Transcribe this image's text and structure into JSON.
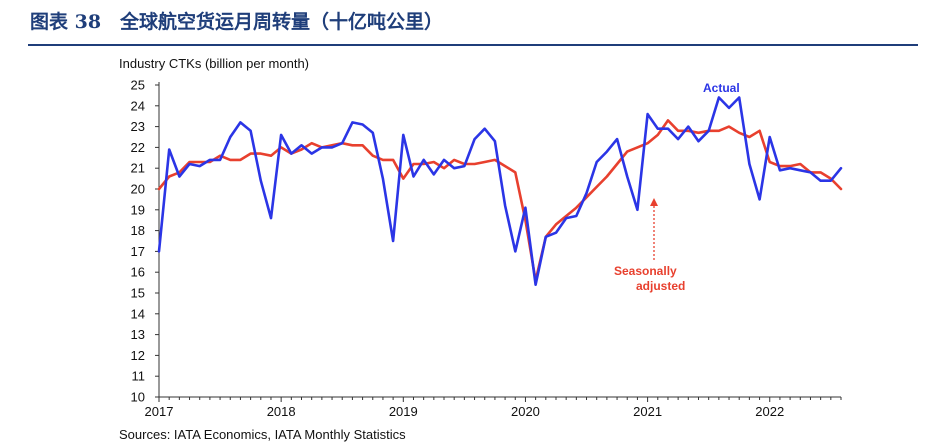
{
  "figure": {
    "title": "图表 38　全球航空货运月周转量（十亿吨公里）",
    "source": "Sources: IATA Economics, IATA Monthly Statistics"
  },
  "chart_data": {
    "type": "line",
    "ylabel": "Industry CTKs (billion per month)",
    "ylim": [
      10,
      25
    ],
    "yticks": [
      "10",
      "11",
      "12",
      "13",
      "14",
      "15",
      "16",
      "17",
      "18",
      "19",
      "20",
      "21",
      "22",
      "23",
      "24",
      "25"
    ],
    "xticks": [
      "2017",
      "2018",
      "2019",
      "2020",
      "2021",
      "2022"
    ],
    "xlim": [
      "2017-01",
      "2022-08"
    ],
    "grid": false,
    "x": [
      "2017-01",
      "2017-02",
      "2017-03",
      "2017-04",
      "2017-05",
      "2017-06",
      "2017-07",
      "2017-08",
      "2017-09",
      "2017-10",
      "2017-11",
      "2017-12",
      "2018-01",
      "2018-02",
      "2018-03",
      "2018-04",
      "2018-05",
      "2018-06",
      "2018-07",
      "2018-08",
      "2018-09",
      "2018-10",
      "2018-11",
      "2018-12",
      "2019-01",
      "2019-02",
      "2019-03",
      "2019-04",
      "2019-05",
      "2019-06",
      "2019-07",
      "2019-08",
      "2019-09",
      "2019-10",
      "2019-11",
      "2019-12",
      "2020-01",
      "2020-02",
      "2020-03",
      "2020-04",
      "2020-05",
      "2020-06",
      "2020-07",
      "2020-08",
      "2020-09",
      "2020-10",
      "2020-11",
      "2020-12",
      "2021-01",
      "2021-02",
      "2021-03",
      "2021-04",
      "2021-05",
      "2021-06",
      "2021-07",
      "2021-08",
      "2021-09",
      "2021-10",
      "2021-11",
      "2021-12",
      "2022-01",
      "2022-02",
      "2022-03",
      "2022-04",
      "2022-05",
      "2022-06",
      "2022-07",
      "2022-08"
    ],
    "series": [
      {
        "name": "Actual",
        "color": "#2b35e6",
        "values": [
          17.0,
          21.9,
          20.6,
          21.2,
          21.1,
          21.4,
          21.4,
          22.5,
          23.2,
          22.8,
          20.4,
          18.6,
          22.6,
          21.7,
          22.1,
          21.7,
          22.0,
          22.0,
          22.2,
          23.2,
          23.1,
          22.7,
          20.5,
          17.5,
          22.6,
          20.6,
          21.4,
          20.7,
          21.4,
          21.0,
          21.1,
          22.4,
          22.9,
          22.3,
          19.2,
          17.0,
          19.1,
          15.4,
          17.7,
          17.9,
          18.6,
          18.7,
          19.8,
          21.3,
          21.8,
          22.4,
          20.6,
          19.0,
          23.6,
          22.9,
          22.9,
          22.4,
          23.0,
          22.3,
          22.8,
          24.4,
          23.9,
          24.4,
          21.2,
          19.5,
          22.5,
          20.9,
          21.0,
          20.9,
          20.8,
          20.4,
          20.4,
          21.0
        ]
      },
      {
        "name": "Seasonally adjusted",
        "color": "#e8402e",
        "values": [
          20.0,
          20.6,
          20.8,
          21.3,
          21.3,
          21.3,
          21.6,
          21.4,
          21.4,
          21.7,
          21.7,
          21.6,
          22.0,
          21.7,
          21.9,
          22.2,
          22.0,
          22.1,
          22.2,
          22.1,
          22.1,
          21.6,
          21.4,
          21.4,
          20.5,
          21.2,
          21.2,
          21.3,
          21.0,
          21.4,
          21.2,
          21.2,
          21.3,
          21.4,
          21.1,
          20.8,
          18.5,
          15.6,
          17.7,
          18.3,
          18.7,
          19.1,
          19.6,
          20.1,
          20.6,
          21.2,
          21.8,
          22.0,
          22.2,
          22.6,
          23.3,
          22.8,
          22.8,
          22.7,
          22.8,
          22.8,
          23.0,
          22.7,
          22.5,
          22.8,
          21.3,
          21.1,
          21.1,
          21.2,
          20.8,
          20.8,
          20.5,
          20.0
        ]
      }
    ],
    "annotations": {
      "actual": "Actual",
      "sa_line1": "Seasonally",
      "sa_line2": "adjusted"
    }
  }
}
